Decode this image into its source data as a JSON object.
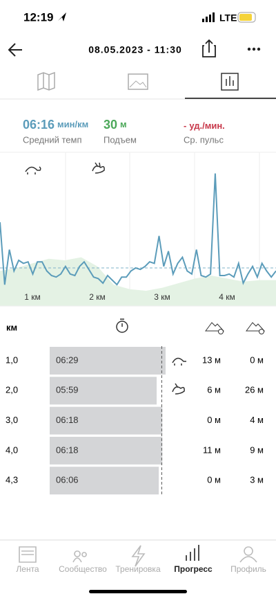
{
  "status_bar": {
    "time": "12:19",
    "network": "LTE"
  },
  "header": {
    "title": "08.05.2023 - 11:30"
  },
  "stats": [
    {
      "value": "06:16",
      "unit": "мин/км",
      "label": "Средний темп"
    },
    {
      "value": "30",
      "unit": "м",
      "label": "Подъем"
    },
    {
      "value": "-",
      "unit": "уд./мин.",
      "label": "Ср. пульс"
    }
  ],
  "chart_data": {
    "type": "line",
    "x_labels": [
      "1 км",
      "2 км",
      "3 км",
      "4 км"
    ],
    "ylim": [
      0,
      100
    ],
    "average": 25,
    "series": [
      {
        "name": "pace",
        "color": "#5b9cba",
        "values": [
          55,
          14,
          37,
          23,
          30,
          28,
          29,
          21,
          29,
          29,
          23,
          20,
          19,
          21,
          26,
          21,
          20,
          26,
          29,
          24,
          19,
          18,
          15,
          20,
          17,
          14,
          19,
          19,
          23,
          25,
          24,
          26,
          29,
          28,
          46,
          26,
          36,
          21,
          28,
          32,
          23,
          21,
          37,
          20,
          19,
          21,
          87,
          20,
          20,
          21,
          19,
          28,
          15,
          21,
          26,
          19,
          28,
          23,
          19,
          23
        ]
      },
      {
        "name": "elevation",
        "color": "#e4f2e4",
        "values": [
          23,
          25,
          28,
          31,
          30,
          32,
          26,
          14,
          11,
          10,
          12,
          15,
          18,
          20,
          18,
          16,
          17,
          17
        ]
      }
    ]
  },
  "table": {
    "header": "км",
    "rows": [
      [
        "1,0",
        "06:29",
        "13 м",
        "0 м"
      ],
      [
        "2,0",
        "05:59",
        "6 м",
        "26 м"
      ],
      [
        "3,0",
        "06:18",
        "0 м",
        "4 м"
      ],
      [
        "4,0",
        "06:18",
        "11 м",
        "9 м"
      ],
      [
        "4,3",
        "06:06",
        "0 м",
        "3 м"
      ]
    ]
  },
  "nav": [
    "Лента",
    "Сообщество",
    "Тренировка",
    "Прогресс",
    "Профиль"
  ]
}
